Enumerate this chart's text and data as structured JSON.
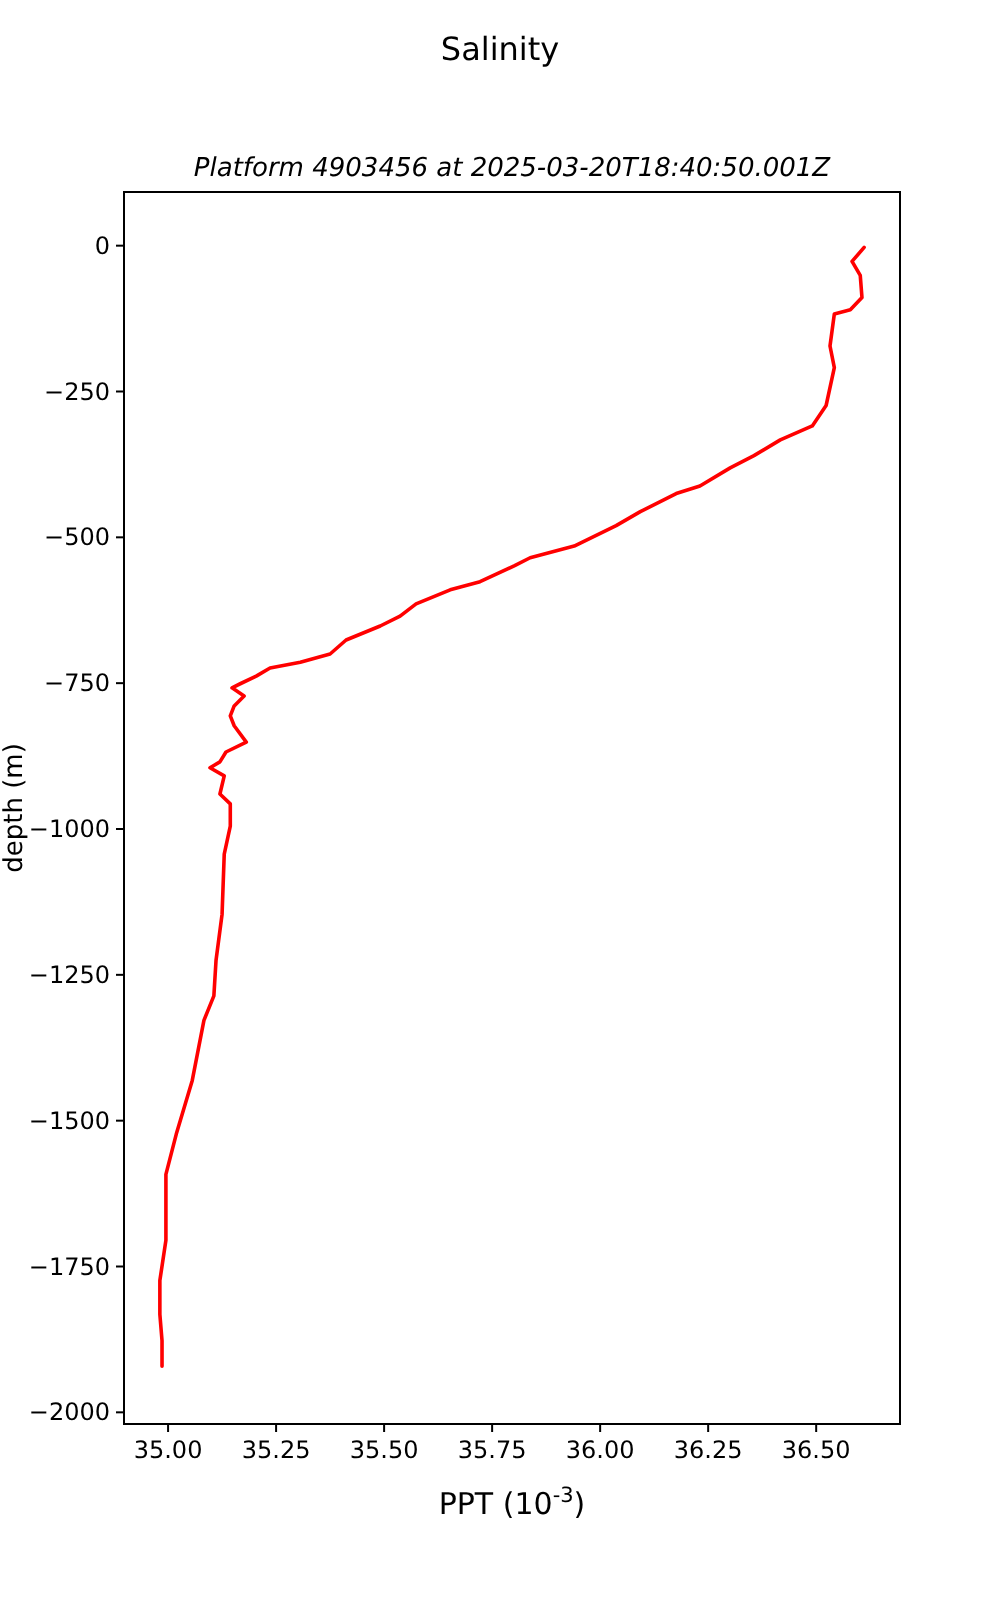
{
  "chart_data": {
    "type": "line",
    "title": "Salinity",
    "subtitle": "Platform 4903456 at 2025-03-20T18:40:50.001Z",
    "xlabel": "PPT (10$^{-3}$)",
    "ylabel": "depth (m)",
    "xlim": [
      34.898,
      36.694
    ],
    "ylim": [
      -2020,
      92
    ],
    "xticks": [
      {
        "value": 35,
        "label": "35.00"
      },
      35.25,
      {
        "value": 35.5,
        "label": "35.50"
      },
      35.75,
      {
        "value": 36,
        "label": "36.00"
      },
      36.25,
      {
        "value": 36.5,
        "label": "36.50"
      }
    ],
    "yticks": [
      0,
      {
        "value": -250,
        "label": "−250"
      },
      {
        "value": -500,
        "label": "−500"
      },
      {
        "value": -750,
        "label": "−750"
      },
      {
        "value": -1000,
        "label": "−1000"
      },
      {
        "value": -1250,
        "label": "−1250"
      },
      {
        "value": -1500,
        "label": "−1500"
      },
      {
        "value": -1750,
        "label": "−1750"
      },
      {
        "value": -2000,
        "label": "−2000"
      }
    ],
    "grid": false,
    "line_style": "solid",
    "marker": "none",
    "series": [
      {
        "color": "#ff0000",
        "x": [
          36.611,
          36.583,
          36.602,
          36.606,
          36.579,
          36.542,
          36.532,
          36.542,
          36.523,
          36.491,
          36.417,
          36.356,
          36.301,
          36.231,
          36.176,
          36.093,
          36.037,
          35.94,
          35.838,
          35.801,
          35.722,
          35.653,
          35.574,
          35.537,
          35.491,
          35.412,
          35.375,
          35.306,
          35.236,
          35.204,
          35.167,
          35.148,
          35.176,
          35.153,
          35.144,
          35.153,
          35.181,
          35.134,
          35.12,
          35.097,
          35.13,
          35.12,
          35.144,
          35.144,
          35.13,
          35.125,
          35.111,
          35.106,
          35.083,
          35.056,
          35.019,
          34.995,
          34.995,
          34.981,
          34.981,
          34.986,
          34.986
        ],
        "values": [
          -3,
          -27,
          -51,
          -89,
          -110,
          -117,
          -172,
          -209,
          -274,
          -309,
          -333,
          -360,
          -381,
          -412,
          -425,
          -456,
          -480,
          -515,
          -535,
          -549,
          -576,
          -590,
          -614,
          -635,
          -652,
          -676,
          -700,
          -714,
          -724,
          -738,
          -751,
          -758,
          -772,
          -789,
          -806,
          -823,
          -851,
          -868,
          -885,
          -895,
          -909,
          -940,
          -957,
          -995,
          -1043,
          -1146,
          -1225,
          -1286,
          -1328,
          -1431,
          -1523,
          -1592,
          -1705,
          -1774,
          -1832,
          -1877,
          -1921
        ]
      }
    ]
  }
}
